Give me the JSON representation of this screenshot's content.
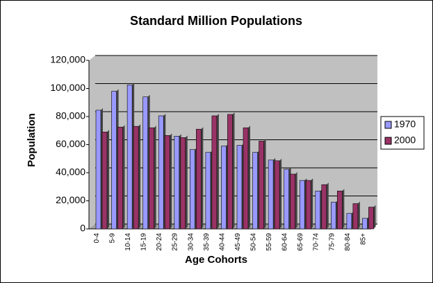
{
  "chart_data": {
    "type": "bar",
    "title": "Standard Million Populations",
    "x_label": "Age Cohorts",
    "y_label": "Population",
    "categories": [
      "0-4",
      "5-9",
      "10-14",
      "15-19",
      "20-24",
      "25-29",
      "30-34",
      "35-39",
      "40-44",
      "45-49",
      "50-54",
      "55-59",
      "60-64",
      "65-69",
      "70-74",
      "75-79",
      "80-84",
      "85+"
    ],
    "series": [
      {
        "name": "1970",
        "color": "#9999ff",
        "values": [
          84500,
          98000,
          102500,
          94000,
          80500,
          66000,
          56500,
          54500,
          59000,
          59500,
          54500,
          49000,
          42500,
          34500,
          27000,
          19000,
          11000,
          7500
        ]
      },
      {
        "name": "2000",
        "color": "#993366",
        "values": [
          69000,
          72500,
          73000,
          72000,
          66500,
          65000,
          71000,
          80500,
          81500,
          72000,
          62500,
          48500,
          39000,
          34500,
          31500,
          27000,
          18000,
          15500
        ]
      }
    ],
    "ylim": [
      0,
      120000
    ],
    "yticks": [
      0,
      {
        "value": 20000,
        "label": "20,000"
      },
      {
        "value": 40000,
        "label": "40,000"
      },
      {
        "value": 60000,
        "label": "60,000"
      },
      {
        "value": 80000,
        "label": "80,000"
      },
      {
        "value": 100000,
        "label": "100,000"
      },
      {
        "value": 120000,
        "label": "120,000"
      }
    ],
    "grid": true,
    "legend": "right"
  }
}
